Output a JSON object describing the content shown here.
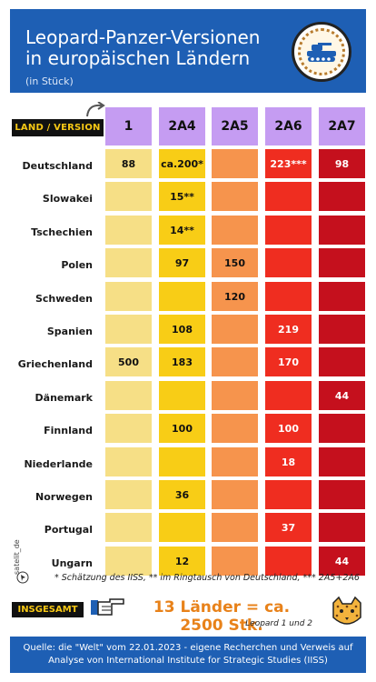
{
  "header": {
    "title": "Leopard-Panzer-Versionen in europäischen Ländern",
    "unit": "(in Stück)",
    "badge_icon": "tank-icon"
  },
  "table": {
    "corner_label": "LAND / VERSION",
    "columns": [
      "1",
      "2A4",
      "2A5",
      "2A6",
      "2A7"
    ],
    "rows": [
      {
        "country": "Deutschland",
        "values": [
          "88",
          "ca.200*",
          "",
          "223***",
          "98"
        ]
      },
      {
        "country": "Slowakei",
        "values": [
          "",
          "15**",
          "",
          "",
          ""
        ]
      },
      {
        "country": "Tschechien",
        "values": [
          "",
          "14**",
          "",
          "",
          ""
        ]
      },
      {
        "country": "Polen",
        "values": [
          "",
          "97",
          "150",
          "",
          ""
        ]
      },
      {
        "country": "Schweden",
        "values": [
          "",
          "",
          "120",
          "",
          ""
        ]
      },
      {
        "country": "Spanien",
        "values": [
          "",
          "108",
          "",
          "219",
          ""
        ]
      },
      {
        "country": "Griechenland",
        "values": [
          "500",
          "183",
          "",
          "170",
          ""
        ]
      },
      {
        "country": "Dänemark",
        "values": [
          "",
          "",
          "",
          "",
          "44"
        ]
      },
      {
        "country": "Finnland",
        "values": [
          "",
          "100",
          "",
          "100",
          ""
        ]
      },
      {
        "country": "Niederlande",
        "values": [
          "",
          "",
          "",
          "18",
          ""
        ]
      },
      {
        "country": "Norwegen",
        "values": [
          "",
          "36",
          "",
          "",
          ""
        ]
      },
      {
        "country": "Portugal",
        "values": [
          "",
          "",
          "",
          "37",
          ""
        ]
      },
      {
        "country": "Ungarn",
        "values": [
          "",
          "12",
          "",
          "",
          "44"
        ]
      }
    ]
  },
  "colors": {
    "header_bg": "#1e5fb4",
    "column_head": "#c59cf2",
    "col_1": "#f6df86",
    "col_2A4": "#f8cd16",
    "col_2A5": "#f6944d",
    "col_2A6": "#ef2d20",
    "col_2A7": "#c5101d",
    "total_text": "#e8821a",
    "label_text": "#f7c815"
  },
  "watermark": "satelit_de",
  "footnote": "* Schätzung des IISS, ** im Ringtausch von Deutschland, *** 2A5+2A6",
  "total": {
    "label": "INSGESAMT",
    "summary": "13 Länder = ca. 2500 Stk.",
    "sub": "Leopard 1 und 2",
    "pointer_icon": "pointing-hand-icon",
    "mascot_icon": "leopard-icon"
  },
  "source": {
    "line1": "Quelle: die \"Welt\" vom 22.01.2023 - eigene Recherchen und Verweis auf",
    "line2": "Analyse von International Institute for Strategic Studies (IISS)"
  }
}
